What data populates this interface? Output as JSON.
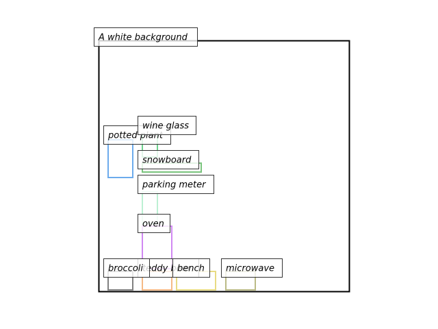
{
  "canvas": {
    "label": "A white background"
  },
  "objects": [
    {
      "label": "potted plant",
      "color": "#3b8fe6"
    },
    {
      "label": "wine glass",
      "color": "#3ec46a"
    },
    {
      "label": "snowboard",
      "color": "#4caf50"
    },
    {
      "label": "parking meter",
      "color": "#a6ebc4"
    },
    {
      "label": "oven",
      "color": "#c060ee"
    },
    {
      "label": "broccoli",
      "color": "#555555"
    },
    {
      "label": "teddy bear",
      "color": "#f2a35e"
    },
    {
      "label": "bench",
      "color": "#e0cf5a"
    },
    {
      "label": "microwave",
      "color": "#a3a35c"
    }
  ]
}
